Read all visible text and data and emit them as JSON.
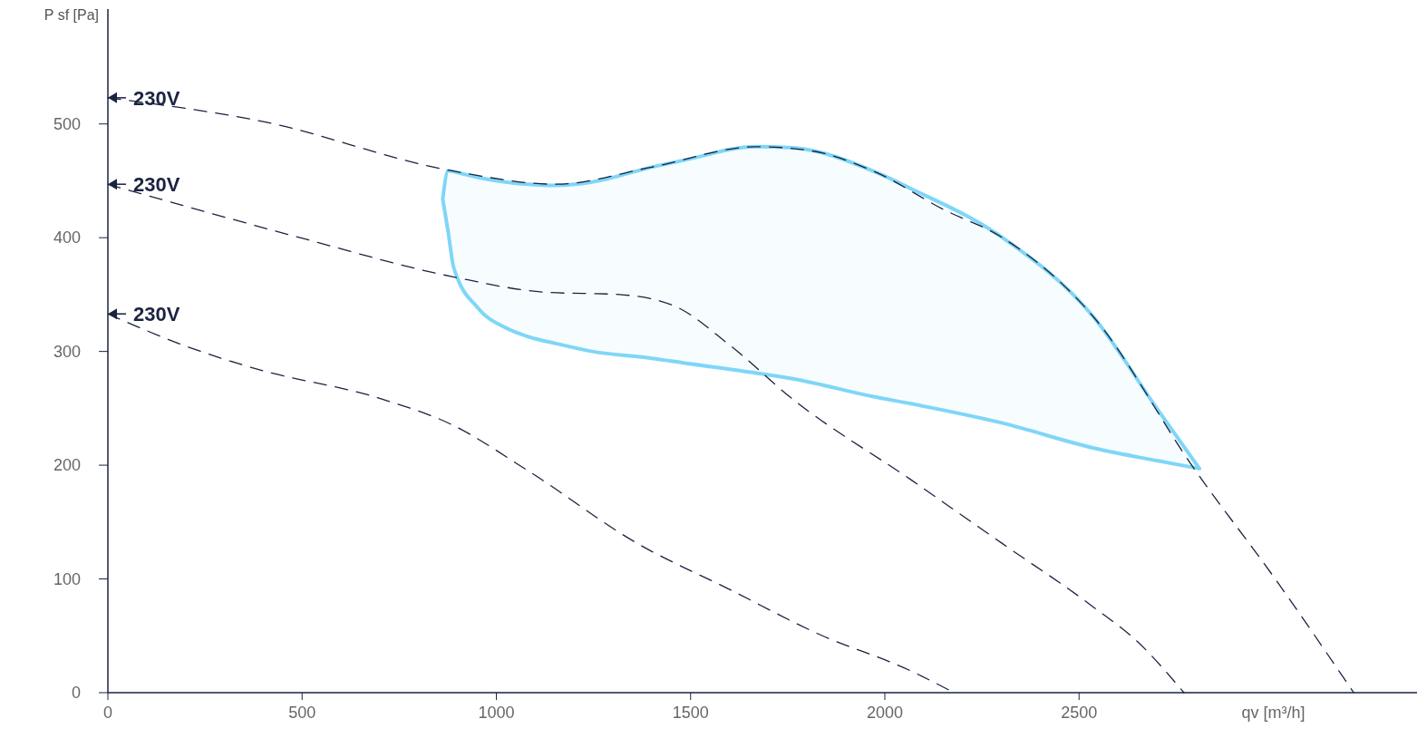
{
  "chart_data": {
    "type": "line",
    "xlabel": "qv [m³/h]",
    "ylabel": "P sf [Pa]",
    "xlim": [
      0,
      3370
    ],
    "ylim": [
      0,
      601
    ],
    "xticks": [
      0,
      500,
      1000,
      1500,
      2000,
      2500
    ],
    "yticks": [
      0,
      100,
      200,
      300,
      400,
      500
    ],
    "grid": false,
    "marker": "none",
    "series": [
      {
        "color": "#1a2340",
        "line_style": "dashed",
        "x": [
          0,
          400,
          883,
          1153,
          1400,
          1669,
          1800,
          1974,
          2150,
          2303,
          2538,
          2796,
          3007,
          3207
        ],
        "values": [
          523,
          502,
          459,
          447,
          462,
          480,
          477,
          458,
          425,
          400,
          330,
          197,
          99,
          0
        ]
      },
      {
        "color": "#1a2340",
        "line_style": "dashed",
        "x": [
          0,
          495,
          883,
          1129,
          1317,
          1458,
          1599,
          1763,
          2068,
          2303,
          2538,
          2650,
          2770
        ],
        "values": [
          447,
          400,
          366,
          352,
          350,
          340,
          306,
          258,
          187,
          131,
          75,
          45,
          0
        ]
      },
      {
        "color": "#1a2340",
        "line_style": "dashed",
        "x": [
          0,
          190,
          378,
          707,
          883,
          1082,
          1364,
          1599,
          1833,
          2068,
          2178
        ],
        "values": [
          333,
          306,
          285,
          258,
          236,
          195,
          131,
          91,
          51,
          19,
          0
        ]
      },
      {
        "color": "#7fd6f7",
        "line_style": "solid",
        "x": [
          862,
          876,
          890,
          953,
          1023,
          1082,
          1153,
          1247,
          1400,
          1481,
          1669,
          1763,
          1974,
          2068,
          2303,
          2538,
          2700,
          2810
        ],
        "values": [
          null,
          null,
          null,
          null,
          null,
          null,
          null,
          null,
          null,
          null,
          null,
          null,
          null,
          null,
          null,
          null,
          null,
          null
        ],
        "upper": [
          434,
          459,
          458,
          453,
          449,
          447,
          446,
          449,
          462,
          468,
          480,
          479,
          458,
          443,
          400,
          330,
          250,
          197
        ],
        "lower": [
          434,
          405,
          374,
          338,
          321,
          313,
          307,
          300,
          294,
          290,
          281,
          276,
          260,
          254,
          237,
          215,
          204,
          197
        ]
      }
    ],
    "annotations": [
      "230V",
      "230V",
      "230V"
    ]
  }
}
